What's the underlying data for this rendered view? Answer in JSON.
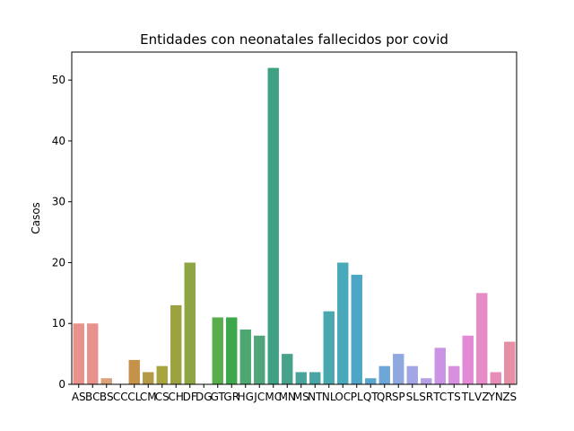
{
  "chart_data": {
    "type": "bar",
    "title": "Entidades con neonatales fallecidos por covid",
    "xlabel": "",
    "ylabel": "Casos",
    "ylim": [
      0,
      54.6
    ],
    "yticks": [
      0,
      10,
      20,
      30,
      40,
      50
    ],
    "grid": false,
    "categories": [
      "AS",
      "BC",
      "BS",
      "CC",
      "CL",
      "CM",
      "CS",
      "CH",
      "DF",
      "DG",
      "GT",
      "GR",
      "HG",
      "JC",
      "MC",
      "MN",
      "MS",
      "NT",
      "NL",
      "OC",
      "PL",
      "QT",
      "QR",
      "SP",
      "SL",
      "SR",
      "TC",
      "TS",
      "TL",
      "VZ",
      "YN",
      "ZS"
    ],
    "values": [
      10,
      10,
      1,
      0,
      4,
      2,
      3,
      13,
      20,
      0,
      11,
      11,
      9,
      8,
      52,
      5,
      2,
      2,
      12,
      20,
      18,
      1,
      3,
      5,
      3,
      1,
      6,
      3,
      8,
      15,
      2,
      7
    ],
    "colors": [
      "#e8928b",
      "#e7928c",
      "#d9a27b",
      "#c9a55a",
      "#c5924a",
      "#b49a45",
      "#a8a43e",
      "#9ca240",
      "#8ea543",
      "#7fae4a",
      "#5aad4b",
      "#3ea74c",
      "#4ca870",
      "#51a57a",
      "#3ea184",
      "#47a28c",
      "#4aa39b",
      "#48a5a4",
      "#48a8ae",
      "#4aa8bb",
      "#4da6c6",
      "#57a6ce",
      "#6da6d7",
      "#8fa9e0",
      "#a3a6e5",
      "#b59fe7",
      "#cb93e3",
      "#d88fdd",
      "#e28ad5",
      "#e58bc6",
      "#e68cb6",
      "#e68ea6"
    ]
  }
}
